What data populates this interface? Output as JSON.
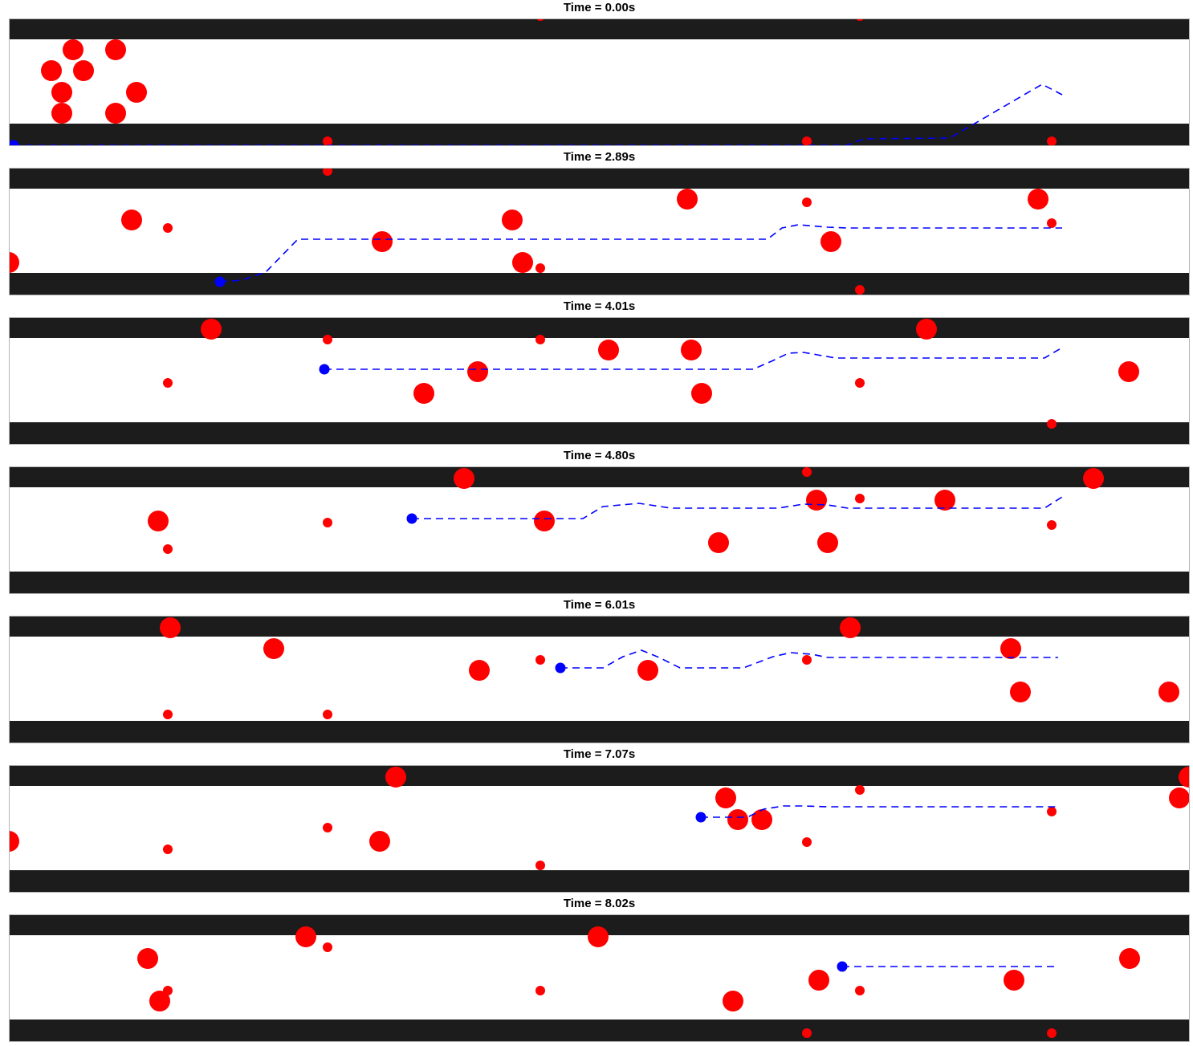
{
  "colors": {
    "background": "#ffffff",
    "wall": "#1c1c1c",
    "obstacle": "#ff0000",
    "robot": "#0000ff",
    "path": "#0000ff",
    "frame": "#b4b4b4"
  },
  "chart_data": {
    "type": "scatter",
    "description_of_axes": "none shown",
    "xlim": [
      0,
      1471
    ],
    "ylim": [
      0,
      158
    ],
    "panels": [
      {
        "title": "Time = 0.00s",
        "robot": [
          6,
          33
        ],
        "path": [
          [
            6,
            33
          ],
          [
            1043,
            33
          ],
          [
            1065,
            25
          ],
          [
            1172,
            24
          ],
          [
            1287,
            -43
          ],
          [
            1312,
            -30
          ]
        ],
        "obstacles": [
          {
            "x": 198,
            "y": -130,
            "r": 6
          },
          {
            "x": 662,
            "y": -128,
            "r": 6
          },
          {
            "x": 1060,
            "y": -128,
            "r": 6
          },
          {
            "x": 80,
            "y": -86,
            "r": 13
          },
          {
            "x": 133,
            "y": -86,
            "r": 13
          },
          {
            "x": 53,
            "y": -60,
            "r": 13
          },
          {
            "x": 93,
            "y": -60,
            "r": 13
          },
          {
            "x": 66,
            "y": -33,
            "r": 13
          },
          {
            "x": 159,
            "y": -33,
            "r": 13
          },
          {
            "x": 66,
            "y": -7,
            "r": 13
          },
          {
            "x": 133,
            "y": -7,
            "r": 13
          },
          {
            "x": 397,
            "y": 28,
            "r": 6
          },
          {
            "x": 994,
            "y": 28,
            "r": 6
          },
          {
            "x": 1299,
            "y": 28,
            "r": 6
          }
        ]
      },
      {
        "title": "Time = 2.89s",
        "robot": [
          263,
          17
        ],
        "path": [
          [
            263,
            17
          ],
          [
            290,
            15
          ],
          [
            320,
            5
          ],
          [
            360,
            -36
          ],
          [
            945,
            -36
          ],
          [
            963,
            -50
          ],
          [
            983,
            -54
          ],
          [
            1020,
            -51
          ],
          [
            1043,
            -50
          ],
          [
            1312,
            -50
          ]
        ],
        "obstacles": [
          {
            "x": 397,
            "y": -121,
            "r": 6
          },
          {
            "x": 845,
            "y": -86,
            "r": 13
          },
          {
            "x": 994,
            "y": -82,
            "r": 6
          },
          {
            "x": 1282,
            "y": -86,
            "r": 13
          },
          {
            "x": 153,
            "y": -60,
            "r": 13
          },
          {
            "x": 198,
            "y": -50,
            "r": 6
          },
          {
            "x": 627,
            "y": -60,
            "r": 13
          },
          {
            "x": 1299,
            "y": -56,
            "r": 6
          },
          {
            "x": 465,
            "y": -33,
            "r": 13
          },
          {
            "x": 1024,
            "y": -33,
            "r": 13
          },
          {
            "x": 0,
            "y": -7,
            "r": 13
          },
          {
            "x": 640,
            "y": -7,
            "r": 13
          },
          {
            "x": 662,
            "y": 0,
            "r": 6
          },
          {
            "x": 1060,
            "y": 27,
            "r": 6
          }
        ]
      },
      {
        "title": "Time = 4.01s",
        "robot": [
          393,
          -60
        ],
        "path": [
          [
            393,
            -60
          ],
          [
            927,
            -60
          ],
          [
            950,
            -70
          ],
          [
            971,
            -80
          ],
          [
            990,
            -81
          ],
          [
            1030,
            -74
          ],
          [
            1290,
            -74
          ],
          [
            1312,
            -87
          ]
        ],
        "obstacles": [
          {
            "x": 994,
            "y": -146,
            "r": 6
          },
          {
            "x": 252,
            "y": -110,
            "r": 13
          },
          {
            "x": 1143,
            "y": -110,
            "r": 13
          },
          {
            "x": 397,
            "y": -97,
            "r": 6
          },
          {
            "x": 662,
            "y": -97,
            "r": 6
          },
          {
            "x": 747,
            "y": -84,
            "r": 13
          },
          {
            "x": 850,
            "y": -84,
            "r": 13
          },
          {
            "x": 584,
            "y": -57,
            "r": 13
          },
          {
            "x": 1395,
            "y": -57,
            "r": 13
          },
          {
            "x": 198,
            "y": -43,
            "r": 6
          },
          {
            "x": 1060,
            "y": -43,
            "r": 6
          },
          {
            "x": 517,
            "y": -30,
            "r": 13
          },
          {
            "x": 863,
            "y": -30,
            "r": 13
          },
          {
            "x": 1299,
            "y": 8,
            "r": 6
          }
        ]
      },
      {
        "title": "Time = 4.80s",
        "robot": [
          502,
          -60
        ],
        "path": [
          [
            502,
            -60
          ],
          [
            715,
            -60
          ],
          [
            740,
            -75
          ],
          [
            785,
            -79
          ],
          [
            825,
            -73
          ],
          [
            958,
            -73
          ],
          [
            990,
            -78
          ],
          [
            1020,
            -77
          ],
          [
            1045,
            -73
          ],
          [
            1290,
            -73
          ],
          [
            1312,
            -87
          ]
        ],
        "obstacles": [
          {
            "x": 662,
            "y": -147,
            "r": 6
          },
          {
            "x": 994,
            "y": -118,
            "r": 6
          },
          {
            "x": 567,
            "y": -110,
            "r": 13
          },
          {
            "x": 1351,
            "y": -110,
            "r": 13
          },
          {
            "x": 1006,
            "y": -83,
            "r": 13
          },
          {
            "x": 1060,
            "y": -85,
            "r": 6
          },
          {
            "x": 1166,
            "y": -83,
            "r": 13
          },
          {
            "x": 186,
            "y": -57,
            "r": 13
          },
          {
            "x": 397,
            "y": -55,
            "r": 6
          },
          {
            "x": 667,
            "y": -57,
            "r": 13
          },
          {
            "x": 1299,
            "y": -52,
            "r": 6
          },
          {
            "x": 198,
            "y": -22,
            "r": 6
          },
          {
            "x": 884,
            "y": -30,
            "r": 13
          },
          {
            "x": 1020,
            "y": -30,
            "r": 13
          }
        ]
      },
      {
        "title": "Time = 6.01s",
        "robot": [
          687,
          -60
        ],
        "path": [
          [
            687,
            -60
          ],
          [
            740,
            -60
          ],
          [
            765,
            -74
          ],
          [
            788,
            -82
          ],
          [
            810,
            -73
          ],
          [
            836,
            -60
          ],
          [
            915,
            -60
          ],
          [
            952,
            -74
          ],
          [
            974,
            -79
          ],
          [
            1000,
            -77
          ],
          [
            1020,
            -73
          ],
          [
            1307,
            -73
          ]
        ],
        "obstacles": [
          {
            "x": 1060,
            "y": -147,
            "r": 6
          },
          {
            "x": 1299,
            "y": -147,
            "r": 6
          },
          {
            "x": 201,
            "y": -110,
            "r": 13
          },
          {
            "x": 1048,
            "y": -110,
            "r": 13
          },
          {
            "x": 330,
            "y": -84,
            "r": 13
          },
          {
            "x": 1248,
            "y": -84,
            "r": 13
          },
          {
            "x": 994,
            "y": -70,
            "r": 6
          },
          {
            "x": 662,
            "y": -70,
            "r": 6
          },
          {
            "x": 586,
            "y": -57,
            "r": 13
          },
          {
            "x": 796,
            "y": -57,
            "r": 13
          },
          {
            "x": 1260,
            "y": -30,
            "r": 13
          },
          {
            "x": 1445,
            "y": -30,
            "r": 13
          },
          {
            "x": 198,
            "y": -2,
            "r": 6
          },
          {
            "x": 397,
            "y": -2,
            "r": 6
          }
        ]
      },
      {
        "title": "Time = 7.07s",
        "robot": [
          862,
          -60
        ],
        "path": [
          [
            862,
            -60
          ],
          [
            920,
            -60
          ],
          [
            940,
            -70
          ],
          [
            965,
            -74
          ],
          [
            990,
            -74
          ],
          [
            1020,
            -73
          ],
          [
            1307,
            -73
          ]
        ],
        "obstacles": [
          {
            "x": 482,
            "y": -110,
            "r": 13
          },
          {
            "x": 1470,
            "y": -110,
            "r": 13
          },
          {
            "x": 1060,
            "y": -94,
            "r": 6
          },
          {
            "x": 893,
            "y": -84,
            "r": 13
          },
          {
            "x": 1458,
            "y": -84,
            "r": 13
          },
          {
            "x": 908,
            "y": -57,
            "r": 13
          },
          {
            "x": 938,
            "y": -57,
            "r": 13
          },
          {
            "x": 1299,
            "y": -67,
            "r": 6
          },
          {
            "x": 397,
            "y": -47,
            "r": 6
          },
          {
            "x": 0,
            "y": -30,
            "r": 13
          },
          {
            "x": 462,
            "y": -30,
            "r": 13
          },
          {
            "x": 994,
            "y": -29,
            "r": 6
          },
          {
            "x": 198,
            "y": -20,
            "r": 6
          },
          {
            "x": 662,
            "y": 0,
            "r": 6
          }
        ]
      },
      {
        "title": "Time = 8.02s",
        "robot": [
          1038,
          -60
        ],
        "path": [
          [
            1038,
            -60
          ],
          [
            1307,
            -60
          ]
        ],
        "obstacles": [
          {
            "x": 370,
            "y": -97,
            "r": 13
          },
          {
            "x": 734,
            "y": -97,
            "r": 13
          },
          {
            "x": 397,
            "y": -84,
            "r": 6
          },
          {
            "x": 173,
            "y": -70,
            "r": 13
          },
          {
            "x": 1396,
            "y": -70,
            "r": 13
          },
          {
            "x": 1009,
            "y": -43,
            "r": 13
          },
          {
            "x": 1252,
            "y": -43,
            "r": 13
          },
          {
            "x": 198,
            "y": -30,
            "r": 6
          },
          {
            "x": 662,
            "y": -30,
            "r": 6
          },
          {
            "x": 1060,
            "y": -30,
            "r": 6
          },
          {
            "x": 188,
            "y": -17,
            "r": 13
          },
          {
            "x": 902,
            "y": -17,
            "r": 13
          },
          {
            "x": 994,
            "y": 23,
            "r": 6
          },
          {
            "x": 1299,
            "y": 23,
            "r": 6
          }
        ]
      }
    ]
  }
}
